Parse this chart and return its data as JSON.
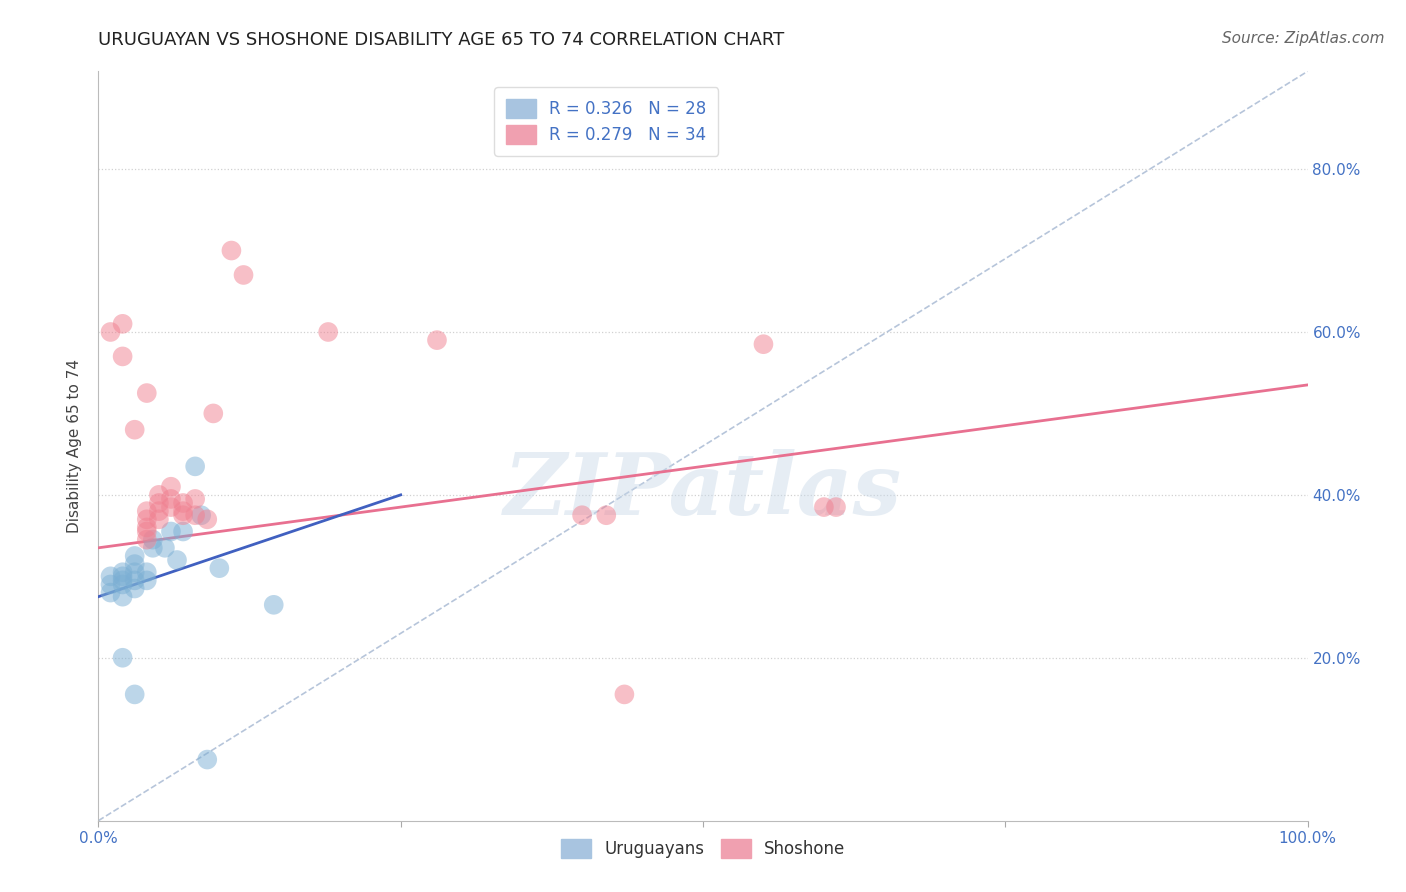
{
  "title": "URUGUAYAN VS SHOSHONE DISABILITY AGE 65 TO 74 CORRELATION CHART",
  "source": "Source: ZipAtlas.com",
  "ylabel": "Disability Age 65 to 74",
  "xlim": [
    0.0,
    1.0
  ],
  "ylim": [
    0.0,
    0.92
  ],
  "ytick_positions": [
    0.2,
    0.4,
    0.6,
    0.8
  ],
  "ytick_labels": [
    "20.0%",
    "40.0%",
    "60.0%",
    "80.0%"
  ],
  "uruguayan_color": "#7bafd4",
  "shoshone_color": "#f08090",
  "uruguayan_alpha": 0.5,
  "shoshone_alpha": 0.5,
  "uruguayan_scatter": [
    [
      0.01,
      0.28
    ],
    [
      0.01,
      0.29
    ],
    [
      0.01,
      0.3
    ],
    [
      0.02,
      0.275
    ],
    [
      0.02,
      0.29
    ],
    [
      0.02,
      0.3
    ],
    [
      0.02,
      0.305
    ],
    [
      0.02,
      0.295
    ],
    [
      0.03,
      0.285
    ],
    [
      0.03,
      0.295
    ],
    [
      0.03,
      0.305
    ],
    [
      0.03,
      0.315
    ],
    [
      0.03,
      0.325
    ],
    [
      0.04,
      0.295
    ],
    [
      0.04,
      0.305
    ],
    [
      0.045,
      0.335
    ],
    [
      0.045,
      0.345
    ],
    [
      0.055,
      0.335
    ],
    [
      0.06,
      0.355
    ],
    [
      0.065,
      0.32
    ],
    [
      0.07,
      0.355
    ],
    [
      0.08,
      0.435
    ],
    [
      0.085,
      0.375
    ],
    [
      0.1,
      0.31
    ],
    [
      0.145,
      0.265
    ],
    [
      0.02,
      0.2
    ],
    [
      0.03,
      0.155
    ],
    [
      0.09,
      0.075
    ]
  ],
  "shoshone_scatter": [
    [
      0.01,
      0.6
    ],
    [
      0.02,
      0.61
    ],
    [
      0.02,
      0.57
    ],
    [
      0.03,
      0.48
    ],
    [
      0.04,
      0.36
    ],
    [
      0.04,
      0.37
    ],
    [
      0.04,
      0.38
    ],
    [
      0.05,
      0.37
    ],
    [
      0.05,
      0.38
    ],
    [
      0.05,
      0.39
    ],
    [
      0.05,
      0.4
    ],
    [
      0.06,
      0.385
    ],
    [
      0.06,
      0.395
    ],
    [
      0.06,
      0.41
    ],
    [
      0.07,
      0.375
    ],
    [
      0.07,
      0.38
    ],
    [
      0.07,
      0.39
    ],
    [
      0.08,
      0.375
    ],
    [
      0.08,
      0.395
    ],
    [
      0.09,
      0.37
    ],
    [
      0.095,
      0.5
    ],
    [
      0.11,
      0.7
    ],
    [
      0.12,
      0.67
    ],
    [
      0.19,
      0.6
    ],
    [
      0.28,
      0.59
    ],
    [
      0.4,
      0.375
    ],
    [
      0.42,
      0.375
    ],
    [
      0.435,
      0.155
    ],
    [
      0.55,
      0.585
    ],
    [
      0.6,
      0.385
    ],
    [
      0.61,
      0.385
    ],
    [
      0.04,
      0.525
    ],
    [
      0.04,
      0.345
    ],
    [
      0.04,
      0.355
    ]
  ],
  "uruguayan_line": {
    "x0": 0.0,
    "y0": 0.275,
    "x1": 0.25,
    "y1": 0.4
  },
  "shoshone_line": {
    "x0": 0.0,
    "y0": 0.335,
    "x1": 1.0,
    "y1": 0.535
  },
  "ref_line": {
    "x0": 0.0,
    "y0": 0.0,
    "x1": 1.0,
    "y1": 0.92
  },
  "watermark": "ZIPatlas",
  "background_color": "#ffffff",
  "grid_color": "#cccccc",
  "title_fontsize": 13,
  "axis_label_fontsize": 11,
  "tick_fontsize": 11,
  "legend_fontsize": 12,
  "source_fontsize": 11
}
